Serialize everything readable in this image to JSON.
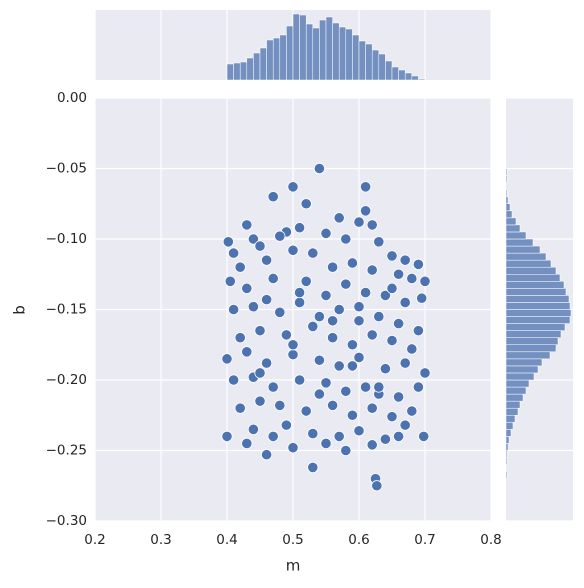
{
  "chart_data": [
    {
      "type": "scatter",
      "xlabel": "m",
      "ylabel": "b",
      "color": "#4c72b0",
      "xlim": [
        0.2,
        0.8
      ],
      "ylim": [
        -0.3,
        0.0
      ],
      "xticks": [
        0.2,
        0.3,
        0.4,
        0.5,
        0.6,
        0.7,
        0.8
      ],
      "yticks": [
        {
          "value": 0.0,
          "label": "0.00"
        },
        {
          "value": -0.05,
          "label": "−0.05"
        },
        {
          "value": -0.1,
          "label": "−0.10"
        },
        {
          "value": -0.15,
          "label": "−0.15"
        },
        {
          "value": -0.2,
          "label": "−0.20"
        },
        {
          "value": -0.25,
          "label": "−0.25"
        },
        {
          "value": -0.3,
          "label": "−0.30"
        }
      ],
      "grid": true,
      "x": [
        0.54,
        0.5,
        0.61,
        0.625,
        0.627,
        0.53,
        0.46,
        0.402,
        0.698,
        0.47,
        0.52,
        0.61,
        0.62,
        0.57,
        0.49,
        0.43,
        0.44,
        0.45,
        0.48,
        0.51,
        0.55,
        0.58,
        0.6,
        0.63,
        0.65,
        0.67,
        0.69,
        0.41,
        0.42,
        0.46,
        0.5,
        0.53,
        0.56,
        0.59,
        0.62,
        0.66,
        0.68,
        0.7,
        0.405,
        0.43,
        0.47,
        0.52,
        0.55,
        0.58,
        0.61,
        0.64,
        0.67,
        0.695,
        0.41,
        0.44,
        0.48,
        0.51,
        0.54,
        0.57,
        0.6,
        0.63,
        0.66,
        0.69,
        0.42,
        0.45,
        0.49,
        0.53,
        0.56,
        0.59,
        0.62,
        0.65,
        0.68,
        0.4,
        0.43,
        0.46,
        0.5,
        0.54,
        0.57,
        0.6,
        0.64,
        0.67,
        0.7,
        0.41,
        0.44,
        0.47,
        0.51,
        0.55,
        0.58,
        0.61,
        0.63,
        0.66,
        0.69,
        0.42,
        0.45,
        0.48,
        0.52,
        0.56,
        0.59,
        0.62,
        0.65,
        0.68,
        0.4,
        0.44,
        0.49,
        0.53,
        0.57,
        0.6,
        0.64,
        0.67,
        0.43,
        0.47,
        0.5,
        0.55,
        0.58,
        0.62,
        0.66,
        0.46,
        0.51,
        0.56,
        0.6,
        0.65,
        0.45,
        0.5,
        0.54,
        0.59,
        0.63
      ],
      "y": [
        -0.05,
        -0.063,
        -0.063,
        -0.27,
        -0.275,
        -0.262,
        -0.253,
        -0.102,
        -0.24,
        -0.07,
        -0.075,
        -0.08,
        -0.09,
        -0.085,
        -0.095,
        -0.09,
        -0.1,
        -0.105,
        -0.098,
        -0.092,
        -0.096,
        -0.1,
        -0.088,
        -0.102,
        -0.112,
        -0.115,
        -0.118,
        -0.11,
        -0.12,
        -0.115,
        -0.108,
        -0.11,
        -0.12,
        -0.117,
        -0.122,
        -0.125,
        -0.128,
        -0.13,
        -0.13,
        -0.135,
        -0.128,
        -0.13,
        -0.14,
        -0.132,
        -0.138,
        -0.14,
        -0.145,
        -0.142,
        -0.15,
        -0.148,
        -0.152,
        -0.145,
        -0.155,
        -0.15,
        -0.158,
        -0.155,
        -0.16,
        -0.165,
        -0.17,
        -0.165,
        -0.168,
        -0.162,
        -0.17,
        -0.175,
        -0.168,
        -0.172,
        -0.178,
        -0.185,
        -0.18,
        -0.188,
        -0.182,
        -0.186,
        -0.19,
        -0.184,
        -0.192,
        -0.188,
        -0.195,
        -0.2,
        -0.198,
        -0.205,
        -0.2,
        -0.202,
        -0.208,
        -0.205,
        -0.21,
        -0.212,
        -0.205,
        -0.22,
        -0.215,
        -0.218,
        -0.222,
        -0.218,
        -0.225,
        -0.22,
        -0.226,
        -0.222,
        -0.24,
        -0.235,
        -0.232,
        -0.238,
        -0.24,
        -0.236,
        -0.242,
        -0.232,
        -0.245,
        -0.24,
        -0.248,
        -0.245,
        -0.25,
        -0.246,
        -0.24,
        -0.143,
        -0.138,
        -0.158,
        -0.148,
        -0.135,
        -0.195,
        -0.175,
        -0.21,
        -0.19,
        -0.205
      ]
    },
    {
      "type": "histogram",
      "orientation": "vertical",
      "color": "#4c72b0",
      "xlim": [
        0.2,
        0.8
      ],
      "ylim": [
        0,
        70
      ],
      "bins": [
        0.4,
        0.41,
        0.42,
        0.43,
        0.44,
        0.45,
        0.46,
        0.47,
        0.48,
        0.49,
        0.5,
        0.51,
        0.52,
        0.53,
        0.54,
        0.55,
        0.56,
        0.57,
        0.58,
        0.59,
        0.6,
        0.61,
        0.62,
        0.63,
        0.64,
        0.65,
        0.66,
        0.67,
        0.68,
        0.69,
        0.7
      ],
      "values": [
        16,
        17,
        18,
        22,
        27,
        32,
        40,
        42,
        45,
        54,
        66,
        65,
        56,
        52,
        60,
        63,
        57,
        53,
        51,
        45,
        39,
        36,
        30,
        26,
        19,
        13,
        10,
        7,
        4,
        1
      ]
    },
    {
      "type": "histogram",
      "orientation": "horizontal",
      "color": "#4c72b0",
      "ylim": [
        -0.3,
        0.0
      ],
      "xlim": [
        0,
        67
      ],
      "bins": [
        -0.275,
        -0.27,
        -0.265,
        -0.26,
        -0.255,
        -0.25,
        -0.245,
        -0.24,
        -0.235,
        -0.23,
        -0.225,
        -0.22,
        -0.215,
        -0.21,
        -0.205,
        -0.2,
        -0.195,
        -0.19,
        -0.185,
        -0.18,
        -0.175,
        -0.17,
        -0.165,
        -0.16,
        -0.155,
        -0.15,
        -0.145,
        -0.14,
        -0.135,
        -0.13,
        -0.125,
        -0.12,
        -0.115,
        -0.11,
        -0.105,
        -0.1,
        -0.095,
        -0.09,
        -0.085,
        -0.08,
        -0.075,
        -0.07,
        -0.065,
        -0.06,
        -0.055,
        -0.05
      ],
      "values": [
        0,
        1,
        0,
        1,
        1,
        2,
        3,
        5,
        7,
        9,
        12,
        14,
        17,
        20,
        23,
        28,
        32,
        36,
        44,
        50,
        52,
        55,
        59,
        64,
        65,
        64,
        63,
        60,
        58,
        54,
        50,
        45,
        40,
        34,
        27,
        20,
        14,
        10,
        6,
        4,
        2,
        1,
        0,
        1,
        1
      ]
    }
  ]
}
